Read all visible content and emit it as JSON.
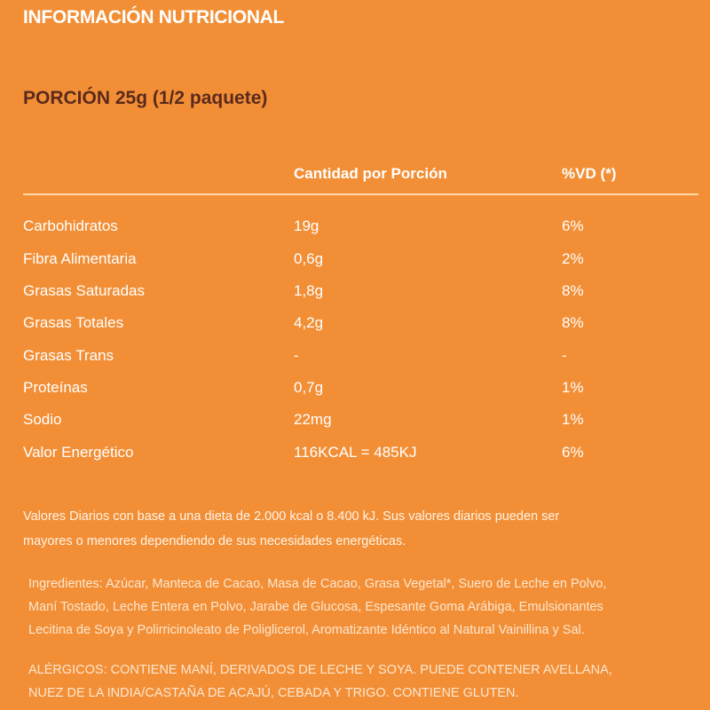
{
  "title": "INFORMACIÓN NUTRICIONAL",
  "portion": "PORCIÓN 25g (1/2 paquete)",
  "table": {
    "headers": {
      "amount": "Cantidad por Porción",
      "dv": "%VD (*)"
    },
    "rows": [
      {
        "name": "Carbohidratos",
        "amount": "19g",
        "dv": "6%"
      },
      {
        "name": "Fibra Alimentaria",
        "amount": "0,6g",
        "dv": "2%"
      },
      {
        "name": "Grasas Saturadas",
        "amount": "1,8g",
        "dv": "8%"
      },
      {
        "name": "Grasas Totales",
        "amount": "4,2g",
        "dv": "8%"
      },
      {
        "name": "Grasas Trans",
        "amount": "-",
        "dv": "-"
      },
      {
        "name": "Proteínas",
        "amount": "0,7g",
        "dv": "1%"
      },
      {
        "name": "Sodio",
        "amount": "22mg",
        "dv": "1%"
      },
      {
        "name": "Valor Energético",
        "amount": "116KCAL = 485KJ",
        "dv": "6%"
      }
    ]
  },
  "footnote": {
    "line1": "Valores Diarios con base a una dieta de 2.000 kcal o 8.400 kJ. Sus valores diarios pueden ser",
    "line2": "mayores o menores dependiendo de sus necesidades energéticas."
  },
  "ingredients": {
    "line1": "Ingredientes: Azúcar, Manteca de Cacao, Masa de Cacao, Grasa Vegetal*, Suero de Leche en Polvo,",
    "line2": "Maní Tostado, Leche Entera en Polvo, Jarabe de Glucosa, Espesante Goma Arábiga, Emulsionantes",
    "line3": "Lecitina de Soya y Polirricinoleato de Poliglicerol, Aromatizante Idéntico al Natural Vainillina y Sal."
  },
  "allergens": {
    "line1": "ALÉRGICOS: CONTIENE MANÍ, DERIVADOS DE LECHE Y SOYA. PUEDE CONTENER AVELLANA,",
    "line2": "NUEZ DE LA INDIA/CASTAÑA DE ACAJÚ, CEBADA Y TRIGO. CONTIENE GLUTEN."
  },
  "colors": {
    "background": "#F28F36",
    "portion_text": "#5b2a1c",
    "text": "#ffffff"
  }
}
